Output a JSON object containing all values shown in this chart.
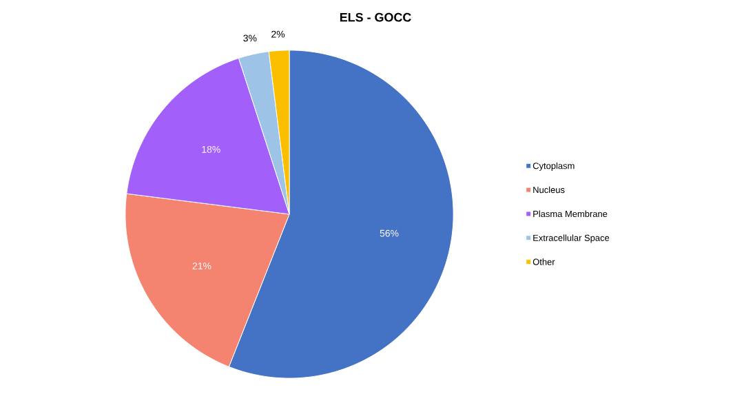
{
  "chart_data": {
    "type": "pie",
    "title": "ELS - GOCC",
    "categories": [
      "Cytoplasm",
      "Nucleus",
      "Plasma Membrane",
      "Extracellular Space",
      "Other"
    ],
    "values": [
      56,
      21,
      18,
      3,
      2
    ],
    "colors": [
      "#4472c4",
      "#f4846f",
      "#a35ffa",
      "#9dc3e6",
      "#fbbf00"
    ],
    "value_labels": [
      "56%",
      "21%",
      "18%",
      "3%",
      "2%"
    ],
    "legend": "right"
  }
}
